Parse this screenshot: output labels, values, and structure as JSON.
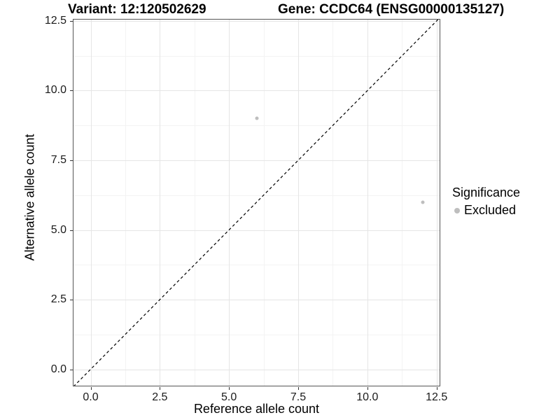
{
  "chart_data": {
    "type": "scatter",
    "titles": {
      "left": "Variant: 12:120502629",
      "right": "Gene: CCDC64 (ENSG00000135127)"
    },
    "xlabel": "Reference allele count",
    "ylabel": "Alternative allele count",
    "xlim": [
      -0.62,
      12.61
    ],
    "ylim": [
      -0.59,
      12.55
    ],
    "x_ticks": {
      "values": [
        0,
        2.5,
        5,
        7.5,
        10,
        12.5
      ],
      "labels": [
        "0.0",
        "2.5",
        "5.0",
        "7.5",
        "10.0",
        "12.5"
      ],
      "minor": [
        1.25,
        3.75,
        6.25,
        8.75,
        11.25
      ]
    },
    "y_ticks": {
      "values": [
        0,
        2.5,
        5,
        7.5,
        10,
        12.5
      ],
      "labels": [
        "0.0",
        "2.5",
        "5.0",
        "7.5",
        "10.0",
        "12.5"
      ],
      "minor": [
        1.25,
        3.75,
        6.25,
        8.75,
        11.25
      ]
    },
    "series": [
      {
        "name": "Excluded",
        "color": "#bebebe",
        "points": [
          {
            "x": 6,
            "y": 9
          },
          {
            "x": 12,
            "y": 6
          }
        ]
      }
    ],
    "reference_line": {
      "type": "identity",
      "slope": 1,
      "intercept": 0,
      "style": "dashed",
      "color": "#000000"
    },
    "grid": {
      "major_color": "#e5e5e5",
      "minor_color": "#f3f3f3",
      "enabled": true
    },
    "legend": {
      "title": "Significance",
      "position": "right",
      "entries": [
        {
          "label": "Excluded",
          "color": "#bebebe"
        }
      ]
    }
  }
}
